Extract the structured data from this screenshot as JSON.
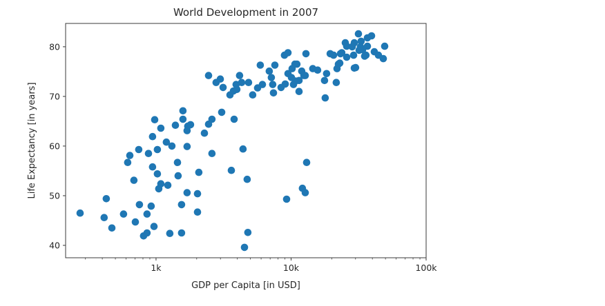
{
  "chart_data": {
    "type": "scatter",
    "title": "World Development in 2007",
    "xlabel": "GDP per Capita [in USD]",
    "ylabel": "Life Expectancy [in years]",
    "xscale": "log",
    "xlim": [
      214,
      100000
    ],
    "ylim": [
      37.5,
      84.7
    ],
    "grid": false,
    "marker_color": "#1f77b4",
    "x_ticks": [
      {
        "value": 1000,
        "label": "1k"
      },
      {
        "value": 10000,
        "label": "10k"
      },
      {
        "value": 100000,
        "label": "100k"
      }
    ],
    "y_ticks": [
      {
        "value": 40,
        "label": "40"
      },
      {
        "value": 50,
        "label": "50"
      },
      {
        "value": 60,
        "label": "60"
      },
      {
        "value": 70,
        "label": "70"
      },
      {
        "value": 80,
        "label": "80"
      }
    ],
    "points": [
      [
        274,
        46.5
      ],
      [
        413,
        45.6
      ],
      [
        428,
        49.4
      ],
      [
        471,
        43.5
      ],
      [
        575,
        46.3
      ],
      [
        617,
        56.7
      ],
      [
        640,
        58.1
      ],
      [
        686,
        53.1
      ],
      [
        703,
        44.7
      ],
      [
        745,
        59.3
      ],
      [
        754,
        48.2
      ],
      [
        809,
        41.9
      ],
      [
        858,
        42.5
      ],
      [
        858,
        46.3
      ],
      [
        879,
        58.5
      ],
      [
        921,
        47.9
      ],
      [
        943,
        61.9
      ],
      [
        943,
        55.8
      ],
      [
        966,
        43.8
      ],
      [
        977,
        65.3
      ],
      [
        1024,
        59.3
      ],
      [
        1024,
        54.4
      ],
      [
        1048,
        51.4
      ],
      [
        1086,
        52.4
      ],
      [
        1086,
        63.6
      ],
      [
        1193,
        60.8
      ],
      [
        1222,
        52.1
      ],
      [
        1265,
        42.4
      ],
      [
        1311,
        60.0
      ],
      [
        1391,
        64.2
      ],
      [
        1441,
        56.7
      ],
      [
        1458,
        54.0
      ],
      [
        1546,
        48.2
      ],
      [
        1546,
        42.5
      ],
      [
        1582,
        67.1
      ],
      [
        1582,
        65.4
      ],
      [
        1698,
        63.1
      ],
      [
        1718,
        64.0
      ],
      [
        1698,
        59.9
      ],
      [
        1698,
        50.6
      ],
      [
        2075,
        54.7
      ],
      [
        1802,
        64.3
      ],
      [
        2028,
        46.7
      ],
      [
        2028,
        50.4
      ],
      [
        2281,
        62.6
      ],
      [
        2449,
        64.4
      ],
      [
        2595,
        65.4
      ],
      [
        2595,
        58.5
      ],
      [
        3062,
        66.8
      ],
      [
        3785,
        65.4
      ],
      [
        3614,
        55.1
      ],
      [
        4406,
        59.4
      ],
      [
        4731,
        53.3
      ],
      [
        4786,
        42.6
      ],
      [
        4519,
        39.6
      ],
      [
        2449,
        74.2
      ],
      [
        2786,
        72.8
      ],
      [
        2991,
        73.5
      ],
      [
        3135,
        71.8
      ],
      [
        3527,
        70.3
      ],
      [
        3741,
        71.1
      ],
      [
        3920,
        72.4
      ],
      [
        4156,
        74.2
      ],
      [
        4306,
        72.8
      ],
      [
        4843,
        72.8
      ],
      [
        3966,
        71.4
      ],
      [
        5199,
        70.3
      ],
      [
        5649,
        71.7
      ],
      [
        6134,
        72.4
      ],
      [
        5920,
        76.3
      ],
      [
        6899,
        75.1
      ],
      [
        7146,
        73.8
      ],
      [
        7313,
        72.4
      ],
      [
        7406,
        70.7
      ],
      [
        7584,
        76.3
      ],
      [
        8435,
        71.8
      ],
      [
        9053,
        72.5
      ],
      [
        9487,
        74.6
      ],
      [
        10180,
        75.6
      ],
      [
        10426,
        72.4
      ],
      [
        11458,
        71.0
      ],
      [
        11998,
        75.1
      ],
      [
        12729,
        74.2
      ],
      [
        11458,
        73.2
      ],
      [
        10672,
        76.5
      ],
      [
        8933,
        78.3
      ],
      [
        9487,
        78.8
      ],
      [
        12883,
        78.6
      ],
      [
        11041,
        76.5
      ],
      [
        12445,
        74.2
      ],
      [
        10791,
        73.1
      ],
      [
        10069,
        73.8
      ],
      [
        14483,
        75.6
      ],
      [
        15728,
        75.3
      ],
      [
        18327,
        74.6
      ],
      [
        17697,
        73.2
      ],
      [
        21613,
        72.8
      ],
      [
        17899,
        69.7
      ],
      [
        22400,
        76.5
      ],
      [
        21882,
        75.6
      ],
      [
        29377,
        75.7
      ],
      [
        19472,
        78.6
      ],
      [
        23749,
        78.8
      ],
      [
        20641,
        78.3
      ],
      [
        23214,
        78.6
      ],
      [
        25820,
        77.9
      ],
      [
        29050,
        78.3
      ],
      [
        31918,
        79.3
      ],
      [
        35875,
        78.3
      ],
      [
        22938,
        76.7
      ],
      [
        31553,
        82.6
      ],
      [
        39464,
        82.2
      ],
      [
        36742,
        81.8
      ],
      [
        33030,
        81.1
      ],
      [
        29377,
        80.8
      ],
      [
        25218,
        80.8
      ],
      [
        25820,
        80.1
      ],
      [
        28374,
        80.0
      ],
      [
        32646,
        80.0
      ],
      [
        36742,
        80.1
      ],
      [
        49318,
        80.1
      ],
      [
        41324,
        79.0
      ],
      [
        44366,
        78.3
      ],
      [
        48201,
        77.6
      ],
      [
        35075,
        78.1
      ],
      [
        33837,
        79.4
      ],
      [
        30060,
        75.8
      ],
      [
        13033,
        56.7
      ],
      [
        12131,
        51.5
      ],
      [
        12729,
        50.6
      ],
      [
        9262,
        49.3
      ]
    ]
  }
}
